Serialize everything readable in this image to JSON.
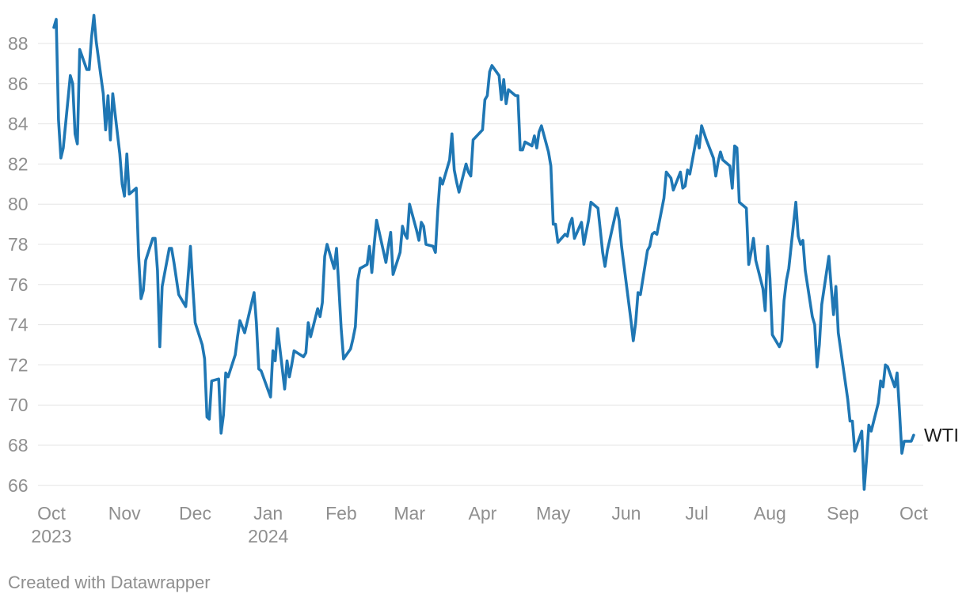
{
  "colors": {
    "line": "#1f77b4",
    "grid": "#e5e5e5",
    "tick_text": "#8f8f8f",
    "series_label_text": "#1d1d1d",
    "credit_text": "#8f8f8f",
    "background": "#ffffff"
  },
  "footer": {
    "credit": "Created with Datawrapper"
  },
  "chart_data": {
    "type": "line",
    "title": "",
    "xlabel": "",
    "ylabel": "",
    "legend_position": "direct-right-of-line",
    "gridlines": "horizontal-only",
    "y_axis": {
      "ticks": [
        66,
        68,
        70,
        72,
        74,
        76,
        78,
        80,
        82,
        84,
        86,
        88
      ],
      "visible_range": [
        65.5,
        89.7
      ]
    },
    "x_axis": {
      "ticks": [
        {
          "date": "2023-10-01",
          "label": "Oct",
          "sublabel": "2023"
        },
        {
          "date": "2023-11-01",
          "label": "Nov"
        },
        {
          "date": "2023-12-01",
          "label": "Dec"
        },
        {
          "date": "2024-01-01",
          "label": "Jan",
          "sublabel": "2024"
        },
        {
          "date": "2024-02-01",
          "label": "Feb"
        },
        {
          "date": "2024-03-01",
          "label": "Mar"
        },
        {
          "date": "2024-04-01",
          "label": "Apr"
        },
        {
          "date": "2024-05-01",
          "label": "May"
        },
        {
          "date": "2024-06-01",
          "label": "Jun"
        },
        {
          "date": "2024-07-01",
          "label": "Jul"
        },
        {
          "date": "2024-08-01",
          "label": "Aug"
        },
        {
          "date": "2024-09-01",
          "label": "Sep"
        },
        {
          "date": "2024-10-01",
          "label": "Oct"
        }
      ]
    },
    "series": [
      {
        "name": "WTI",
        "points": [
          [
            "2023-10-02",
            88.8
          ],
          [
            "2023-10-03",
            89.2
          ],
          [
            "2023-10-04",
            84.2
          ],
          [
            "2023-10-05",
            82.3
          ],
          [
            "2023-10-06",
            82.8
          ],
          [
            "2023-10-09",
            86.4
          ],
          [
            "2023-10-10",
            86.0
          ],
          [
            "2023-10-11",
            83.5
          ],
          [
            "2023-10-12",
            83.0
          ],
          [
            "2023-10-13",
            87.7
          ],
          [
            "2023-10-16",
            86.7
          ],
          [
            "2023-10-17",
            86.7
          ],
          [
            "2023-10-18",
            88.3
          ],
          [
            "2023-10-19",
            89.4
          ],
          [
            "2023-10-20",
            88.1
          ],
          [
            "2023-10-23",
            85.5
          ],
          [
            "2023-10-24",
            83.7
          ],
          [
            "2023-10-25",
            85.4
          ],
          [
            "2023-10-26",
            83.2
          ],
          [
            "2023-10-27",
            85.5
          ],
          [
            "2023-10-30",
            82.5
          ],
          [
            "2023-10-31",
            81.0
          ],
          [
            "2023-11-01",
            80.4
          ],
          [
            "2023-11-02",
            82.5
          ],
          [
            "2023-11-03",
            80.5
          ],
          [
            "2023-11-06",
            80.8
          ],
          [
            "2023-11-07",
            77.4
          ],
          [
            "2023-11-08",
            75.3
          ],
          [
            "2023-11-09",
            75.7
          ],
          [
            "2023-11-10",
            77.2
          ],
          [
            "2023-11-13",
            78.3
          ],
          [
            "2023-11-14",
            78.3
          ],
          [
            "2023-11-15",
            76.7
          ],
          [
            "2023-11-16",
            72.9
          ],
          [
            "2023-11-17",
            75.9
          ],
          [
            "2023-11-20",
            77.8
          ],
          [
            "2023-11-21",
            77.8
          ],
          [
            "2023-11-22",
            77.1
          ],
          [
            "2023-11-24",
            75.5
          ],
          [
            "2023-11-27",
            74.9
          ],
          [
            "2023-11-28",
            76.4
          ],
          [
            "2023-11-29",
            77.9
          ],
          [
            "2023-11-30",
            75.9
          ],
          [
            "2023-12-01",
            74.1
          ],
          [
            "2023-12-04",
            73.0
          ],
          [
            "2023-12-05",
            72.3
          ],
          [
            "2023-12-06",
            69.4
          ],
          [
            "2023-12-07",
            69.3
          ],
          [
            "2023-12-08",
            71.2
          ],
          [
            "2023-12-11",
            71.3
          ],
          [
            "2023-12-12",
            68.6
          ],
          [
            "2023-12-13",
            69.5
          ],
          [
            "2023-12-14",
            71.6
          ],
          [
            "2023-12-15",
            71.4
          ],
          [
            "2023-12-18",
            72.5
          ],
          [
            "2023-12-19",
            73.4
          ],
          [
            "2023-12-20",
            74.2
          ],
          [
            "2023-12-21",
            73.9
          ],
          [
            "2023-12-22",
            73.6
          ],
          [
            "2023-12-26",
            75.6
          ],
          [
            "2023-12-27",
            74.1
          ],
          [
            "2023-12-28",
            71.8
          ],
          [
            "2023-12-29",
            71.7
          ],
          [
            "2024-01-02",
            70.4
          ],
          [
            "2024-01-03",
            72.7
          ],
          [
            "2024-01-04",
            72.2
          ],
          [
            "2024-01-05",
            73.8
          ],
          [
            "2024-01-08",
            70.8
          ],
          [
            "2024-01-09",
            72.2
          ],
          [
            "2024-01-10",
            71.4
          ],
          [
            "2024-01-11",
            72.0
          ],
          [
            "2024-01-12",
            72.7
          ],
          [
            "2024-01-16",
            72.4
          ],
          [
            "2024-01-17",
            72.6
          ],
          [
            "2024-01-18",
            74.1
          ],
          [
            "2024-01-19",
            73.4
          ],
          [
            "2024-01-22",
            74.8
          ],
          [
            "2024-01-23",
            74.4
          ],
          [
            "2024-01-24",
            75.1
          ],
          [
            "2024-01-25",
            77.4
          ],
          [
            "2024-01-26",
            78.0
          ],
          [
            "2024-01-29",
            76.8
          ],
          [
            "2024-01-30",
            77.8
          ],
          [
            "2024-01-31",
            75.9
          ],
          [
            "2024-02-01",
            73.8
          ],
          [
            "2024-02-02",
            72.3
          ],
          [
            "2024-02-05",
            72.8
          ],
          [
            "2024-02-06",
            73.3
          ],
          [
            "2024-02-07",
            73.9
          ],
          [
            "2024-02-08",
            76.2
          ],
          [
            "2024-02-09",
            76.8
          ],
          [
            "2024-02-12",
            77.0
          ],
          [
            "2024-02-13",
            77.9
          ],
          [
            "2024-02-14",
            76.6
          ],
          [
            "2024-02-15",
            78.0
          ],
          [
            "2024-02-16",
            79.2
          ],
          [
            "2024-02-20",
            77.1
          ],
          [
            "2024-02-21",
            77.9
          ],
          [
            "2024-02-22",
            78.6
          ],
          [
            "2024-02-23",
            76.5
          ],
          [
            "2024-02-26",
            77.6
          ],
          [
            "2024-02-27",
            78.9
          ],
          [
            "2024-02-28",
            78.5
          ],
          [
            "2024-02-29",
            78.3
          ],
          [
            "2024-03-01",
            80.0
          ],
          [
            "2024-03-04",
            78.7
          ],
          [
            "2024-03-05",
            78.2
          ],
          [
            "2024-03-06",
            79.1
          ],
          [
            "2024-03-07",
            78.9
          ],
          [
            "2024-03-08",
            78.0
          ],
          [
            "2024-03-11",
            77.9
          ],
          [
            "2024-03-12",
            77.6
          ],
          [
            "2024-03-13",
            79.7
          ],
          [
            "2024-03-14",
            81.3
          ],
          [
            "2024-03-15",
            81.0
          ],
          [
            "2024-03-18",
            82.2
          ],
          [
            "2024-03-19",
            83.5
          ],
          [
            "2024-03-20",
            81.7
          ],
          [
            "2024-03-21",
            81.1
          ],
          [
            "2024-03-22",
            80.6
          ],
          [
            "2024-03-25",
            82.0
          ],
          [
            "2024-03-26",
            81.6
          ],
          [
            "2024-03-27",
            81.4
          ],
          [
            "2024-03-28",
            83.2
          ],
          [
            "2024-04-01",
            83.7
          ],
          [
            "2024-04-02",
            85.2
          ],
          [
            "2024-04-03",
            85.4
          ],
          [
            "2024-04-04",
            86.6
          ],
          [
            "2024-04-05",
            86.9
          ],
          [
            "2024-04-08",
            86.4
          ],
          [
            "2024-04-09",
            85.2
          ],
          [
            "2024-04-10",
            86.2
          ],
          [
            "2024-04-11",
            85.0
          ],
          [
            "2024-04-12",
            85.7
          ],
          [
            "2024-04-15",
            85.4
          ],
          [
            "2024-04-16",
            85.4
          ],
          [
            "2024-04-17",
            82.7
          ],
          [
            "2024-04-18",
            82.7
          ],
          [
            "2024-04-19",
            83.1
          ],
          [
            "2024-04-22",
            82.9
          ],
          [
            "2024-04-23",
            83.4
          ],
          [
            "2024-04-24",
            82.8
          ],
          [
            "2024-04-25",
            83.6
          ],
          [
            "2024-04-26",
            83.9
          ],
          [
            "2024-04-29",
            82.6
          ],
          [
            "2024-04-30",
            81.9
          ],
          [
            "2024-05-01",
            79.0
          ],
          [
            "2024-05-02",
            79.0
          ],
          [
            "2024-05-03",
            78.1
          ],
          [
            "2024-05-06",
            78.5
          ],
          [
            "2024-05-07",
            78.4
          ],
          [
            "2024-05-08",
            79.0
          ],
          [
            "2024-05-09",
            79.3
          ],
          [
            "2024-05-10",
            78.3
          ],
          [
            "2024-05-13",
            79.1
          ],
          [
            "2024-05-14",
            78.0
          ],
          [
            "2024-05-15",
            78.6
          ],
          [
            "2024-05-16",
            79.2
          ],
          [
            "2024-05-17",
            80.1
          ],
          [
            "2024-05-20",
            79.8
          ],
          [
            "2024-05-21",
            78.7
          ],
          [
            "2024-05-22",
            77.6
          ],
          [
            "2024-05-23",
            76.9
          ],
          [
            "2024-05-24",
            77.7
          ],
          [
            "2024-05-28",
            79.8
          ],
          [
            "2024-05-29",
            79.2
          ],
          [
            "2024-05-30",
            77.9
          ],
          [
            "2024-05-31",
            77.0
          ],
          [
            "2024-06-03",
            74.2
          ],
          [
            "2024-06-04",
            73.2
          ],
          [
            "2024-06-05",
            74.1
          ],
          [
            "2024-06-06",
            75.6
          ],
          [
            "2024-06-07",
            75.5
          ],
          [
            "2024-06-10",
            77.7
          ],
          [
            "2024-06-11",
            77.9
          ],
          [
            "2024-06-12",
            78.5
          ],
          [
            "2024-06-13",
            78.6
          ],
          [
            "2024-06-14",
            78.5
          ],
          [
            "2024-06-17",
            80.3
          ],
          [
            "2024-06-18",
            81.6
          ],
          [
            "2024-06-20",
            81.3
          ],
          [
            "2024-06-21",
            80.7
          ],
          [
            "2024-06-24",
            81.6
          ],
          [
            "2024-06-25",
            80.8
          ],
          [
            "2024-06-26",
            80.9
          ],
          [
            "2024-06-27",
            81.7
          ],
          [
            "2024-06-28",
            81.5
          ],
          [
            "2024-07-01",
            83.4
          ],
          [
            "2024-07-02",
            82.8
          ],
          [
            "2024-07-03",
            83.9
          ],
          [
            "2024-07-05",
            83.2
          ],
          [
            "2024-07-08",
            82.3
          ],
          [
            "2024-07-09",
            81.4
          ],
          [
            "2024-07-10",
            82.1
          ],
          [
            "2024-07-11",
            82.6
          ],
          [
            "2024-07-12",
            82.2
          ],
          [
            "2024-07-15",
            81.9
          ],
          [
            "2024-07-16",
            80.8
          ],
          [
            "2024-07-17",
            82.9
          ],
          [
            "2024-07-18",
            82.8
          ],
          [
            "2024-07-19",
            80.1
          ],
          [
            "2024-07-22",
            79.8
          ],
          [
            "2024-07-23",
            77.0
          ],
          [
            "2024-07-24",
            77.6
          ],
          [
            "2024-07-25",
            78.3
          ],
          [
            "2024-07-26",
            77.2
          ],
          [
            "2024-07-29",
            75.8
          ],
          [
            "2024-07-30",
            74.7
          ],
          [
            "2024-07-31",
            77.9
          ],
          [
            "2024-08-01",
            76.3
          ],
          [
            "2024-08-02",
            73.5
          ],
          [
            "2024-08-05",
            72.9
          ],
          [
            "2024-08-06",
            73.2
          ],
          [
            "2024-08-07",
            75.2
          ],
          [
            "2024-08-08",
            76.2
          ],
          [
            "2024-08-09",
            76.8
          ],
          [
            "2024-08-12",
            80.1
          ],
          [
            "2024-08-13",
            78.4
          ],
          [
            "2024-08-14",
            78.0
          ],
          [
            "2024-08-15",
            78.2
          ],
          [
            "2024-08-16",
            76.7
          ],
          [
            "2024-08-19",
            74.4
          ],
          [
            "2024-08-20",
            74.0
          ],
          [
            "2024-08-21",
            71.9
          ],
          [
            "2024-08-22",
            73.0
          ],
          [
            "2024-08-23",
            75.0
          ],
          [
            "2024-08-26",
            77.4
          ],
          [
            "2024-08-27",
            75.9
          ],
          [
            "2024-08-28",
            74.5
          ],
          [
            "2024-08-29",
            75.9
          ],
          [
            "2024-08-30",
            73.6
          ],
          [
            "2024-09-03",
            70.3
          ],
          [
            "2024-09-04",
            69.2
          ],
          [
            "2024-09-05",
            69.2
          ],
          [
            "2024-09-06",
            67.7
          ],
          [
            "2024-09-09",
            68.7
          ],
          [
            "2024-09-10",
            65.8
          ],
          [
            "2024-09-11",
            67.3
          ],
          [
            "2024-09-12",
            69.0
          ],
          [
            "2024-09-13",
            68.7
          ],
          [
            "2024-09-16",
            70.1
          ],
          [
            "2024-09-17",
            71.2
          ],
          [
            "2024-09-18",
            70.9
          ],
          [
            "2024-09-19",
            72.0
          ],
          [
            "2024-09-20",
            71.9
          ],
          [
            "2024-09-23",
            70.9
          ],
          [
            "2024-09-24",
            71.6
          ],
          [
            "2024-09-25",
            69.7
          ],
          [
            "2024-09-26",
            67.6
          ],
          [
            "2024-09-27",
            68.2
          ],
          [
            "2024-09-30",
            68.2
          ],
          [
            "2024-10-01",
            68.5
          ]
        ]
      }
    ]
  }
}
